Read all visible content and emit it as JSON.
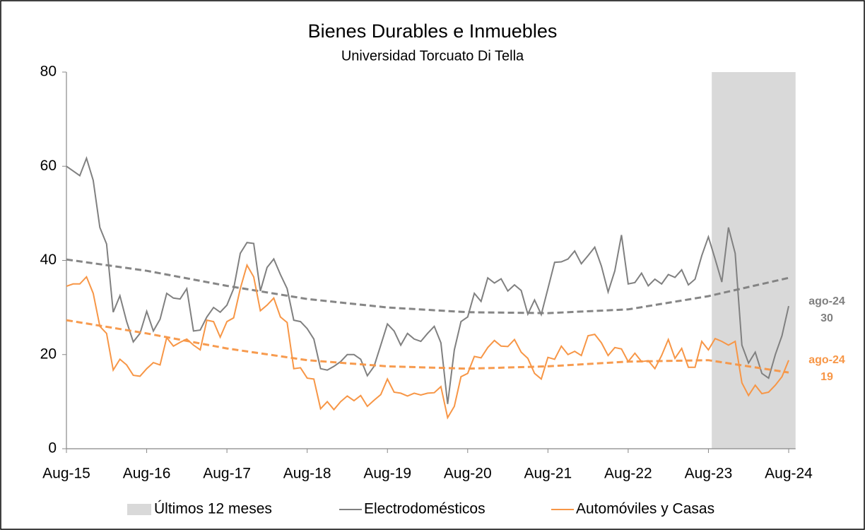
{
  "chart_data": {
    "type": "line",
    "title": "Bienes Durables e Inmuebles",
    "subtitle": "Universidad Torcuato Di Tella",
    "categories": [
      "Aug-15",
      null,
      null,
      null,
      null,
      null,
      null,
      null,
      null,
      null,
      null,
      null,
      "Aug-16",
      null,
      null,
      null,
      null,
      null,
      null,
      null,
      null,
      null,
      null,
      null,
      "Aug-17",
      null,
      null,
      null,
      null,
      null,
      null,
      null,
      null,
      null,
      null,
      null,
      "Aug-18",
      null,
      null,
      null,
      null,
      null,
      null,
      null,
      null,
      null,
      null,
      null,
      "Aug-19",
      null,
      null,
      null,
      null,
      null,
      null,
      null,
      null,
      null,
      null,
      null,
      "Aug-20",
      null,
      null,
      null,
      null,
      null,
      null,
      null,
      null,
      null,
      null,
      null,
      "Aug-21",
      null,
      null,
      null,
      null,
      null,
      null,
      null,
      null,
      null,
      null,
      null,
      "Aug-22",
      null,
      null,
      null,
      null,
      null,
      null,
      null,
      null,
      null,
      null,
      null,
      "Aug-23",
      null,
      null,
      null,
      null,
      null,
      null,
      null,
      null,
      null,
      null,
      null,
      "Aug-24"
    ],
    "ylim": [
      0,
      80
    ],
    "yticks": [
      0,
      20,
      40,
      60,
      80
    ],
    "highlight": {
      "name": "Últimos 12 meses",
      "color": "#d9d9d9",
      "months": 12
    },
    "series": [
      {
        "name": "Electrodomésticos",
        "color": "#808080",
        "values": [
          60,
          59,
          58,
          61.7,
          57,
          47,
          43.5,
          29,
          32.5,
          27,
          22.7,
          24.5,
          29.2,
          25,
          27.5,
          33,
          32,
          31.8,
          34,
          25,
          25.2,
          28,
          30,
          29,
          30.5,
          34,
          41.5,
          43.8,
          43.6,
          33.5,
          38.5,
          40.3,
          37,
          34,
          27.3,
          27,
          25.5,
          23.3,
          17,
          16.7,
          17.5,
          18.5,
          20,
          20,
          19,
          15.5,
          17.5,
          22,
          26.5,
          25,
          22,
          24.5,
          23.3,
          22.8,
          24.5,
          26,
          22.5,
          9.5,
          21,
          27,
          28,
          33,
          31.3,
          36.3,
          35.2,
          36.1,
          33.5,
          34.8,
          33.6,
          28.6,
          31.6,
          28.5,
          34,
          39.6,
          39.7,
          40.3,
          42,
          39.3,
          41,
          42.8,
          38.8,
          33.3,
          37.8,
          45.4,
          35,
          35.3,
          37.3,
          34.6,
          36,
          35,
          37,
          36.4,
          38,
          34.8,
          36,
          41,
          45,
          40.3,
          35.4,
          47,
          41.5,
          22,
          18.2,
          20.5,
          16,
          15,
          20,
          24,
          30.3
        ],
        "trend_x": [
          "Aug-15",
          "Aug-16",
          "Aug-17",
          "Aug-18",
          "Aug-19",
          "Aug-20",
          "Aug-21",
          "Aug-22",
          "Aug-23",
          "Aug-24"
        ],
        "trend": [
          40.2,
          37.8,
          34.6,
          31.8,
          30.0,
          29.0,
          28.8,
          29.6,
          32.4,
          36.3
        ],
        "end_label": {
          "date": "ago-24",
          "value": "30"
        }
      },
      {
        "name": "Automóviles y Casas",
        "color": "#f79646",
        "values": [
          34.5,
          35,
          35,
          36.5,
          33,
          26,
          24.5,
          16.7,
          19,
          17.8,
          15.6,
          15.4,
          17,
          18.3,
          17.8,
          23.6,
          21.8,
          22.6,
          23.3,
          22,
          21,
          27.3,
          27,
          23.7,
          27,
          27.8,
          34,
          39,
          36.5,
          29.3,
          30.5,
          32,
          28,
          26.8,
          17,
          17.2,
          15,
          14.8,
          8.5,
          10,
          8.3,
          10,
          11.2,
          10.2,
          11.3,
          9,
          10.3,
          11.5,
          14.8,
          12,
          11.8,
          11.2,
          11.8,
          11.4,
          11.8,
          11.9,
          13.2,
          6.6,
          9,
          15.3,
          16,
          19.6,
          19.3,
          21.5,
          23,
          21.8,
          21.7,
          23.2,
          20.5,
          19.2,
          16,
          14.8,
          19.4,
          19,
          21.8,
          20,
          20.7,
          19.8,
          24,
          24.3,
          22.5,
          19.8,
          21.5,
          21.2,
          18.5,
          20.3,
          18.5,
          18.7,
          17,
          19.8,
          23.2,
          19.2,
          21.3,
          17.3,
          17.3,
          22.8,
          21,
          23.4,
          22.8,
          22,
          22.8,
          14,
          11.3,
          13.5,
          11.7,
          12,
          13.5,
          15.3,
          18.8
        ],
        "trend_x": [
          "Aug-15",
          "Aug-16",
          "Aug-17",
          "Aug-18",
          "Aug-19",
          "Aug-20",
          "Aug-21",
          "Aug-22",
          "Aug-23",
          "Aug-24"
        ],
        "trend": [
          27.3,
          24.5,
          21.3,
          18.8,
          17.5,
          17.0,
          17.5,
          18.5,
          18.8,
          16.2
        ],
        "end_label": {
          "date": "ago-24",
          "value": "19"
        }
      }
    ]
  }
}
